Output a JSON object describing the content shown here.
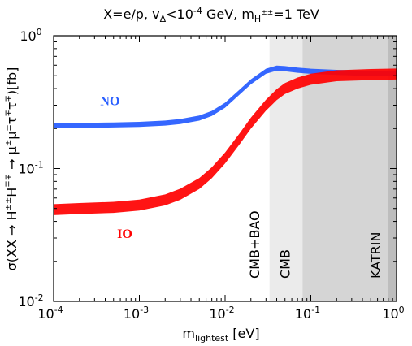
{
  "chart_data": {
    "type": "line",
    "title_parts": {
      "a": "X=e/p, v",
      "b": "Δ",
      "c": "<10",
      "d": "-4",
      "e": " GeV, m",
      "f": "H",
      "g": "±±",
      "h": "=1 TeV"
    },
    "xlabel_parts": {
      "main": "m",
      "sub": "lightest",
      "rest": " [eV]"
    },
    "ylabel_parts": {
      "a": "σ(XX → H",
      "b": "±±",
      "c": "H",
      "d": "∓∓",
      "e": " → μ",
      "f": "±",
      "g": "μ",
      "h": "±",
      "i": "τ",
      "j": "∓",
      "k": "τ",
      "l": "∓",
      "m": ")[fb]"
    },
    "x_scale": "log",
    "y_scale": "log",
    "xlim": [
      0.0001,
      1
    ],
    "ylim": [
      0.01,
      1
    ],
    "xticks": [
      {
        "value": 0.0001,
        "base": "10",
        "exp": "-4"
      },
      {
        "value": 0.001,
        "base": "10",
        "exp": "-3"
      },
      {
        "value": 0.01,
        "base": "10",
        "exp": "-2"
      },
      {
        "value": 0.1,
        "base": "10",
        "exp": "-1"
      },
      {
        "value": 1,
        "base": "10",
        "exp": "0"
      }
    ],
    "yticks": [
      {
        "value": 0.01,
        "base": "10",
        "exp": "-2"
      },
      {
        "value": 0.1,
        "base": "10",
        "exp": "-1"
      },
      {
        "value": 1,
        "base": "10",
        "exp": "0"
      }
    ],
    "excluded_regions": [
      {
        "label": "CMB+BAO",
        "x_from": 0.033,
        "x_to": 0.08,
        "color": "#ebebeb"
      },
      {
        "label": "CMB",
        "x_from": 0.08,
        "x_to": 0.8,
        "color": "#d5d5d5"
      },
      {
        "label": "KATRIN",
        "x_from": 0.8,
        "x_to": 1,
        "color": "#bdbdbd"
      }
    ],
    "series": [
      {
        "name": "NO",
        "color": "#2a5fff",
        "x": [
          0.0001,
          0.0002,
          0.0005,
          0.001,
          0.002,
          0.003,
          0.005,
          0.007,
          0.01,
          0.015,
          0.02,
          0.03,
          0.04,
          0.05,
          0.07,
          0.1,
          0.2,
          0.5,
          1
        ],
        "y": [
          0.21,
          0.211,
          0.213,
          0.215,
          0.22,
          0.226,
          0.24,
          0.26,
          0.3,
          0.38,
          0.45,
          0.54,
          0.57,
          0.565,
          0.55,
          0.54,
          0.53,
          0.52,
          0.52
        ],
        "band_factor": 1.045
      },
      {
        "name": "IO",
        "color": "#ff0000",
        "x": [
          0.0001,
          0.0002,
          0.0005,
          0.001,
          0.002,
          0.003,
          0.005,
          0.007,
          0.01,
          0.015,
          0.02,
          0.03,
          0.04,
          0.05,
          0.07,
          0.1,
          0.2,
          0.5,
          1
        ],
        "y": [
          0.049,
          0.05,
          0.051,
          0.053,
          0.058,
          0.064,
          0.077,
          0.093,
          0.12,
          0.17,
          0.22,
          0.3,
          0.36,
          0.4,
          0.44,
          0.47,
          0.5,
          0.51,
          0.515
        ],
        "band_factor": 1.1
      }
    ],
    "labels": {
      "no": "NO",
      "io": "IO"
    }
  }
}
